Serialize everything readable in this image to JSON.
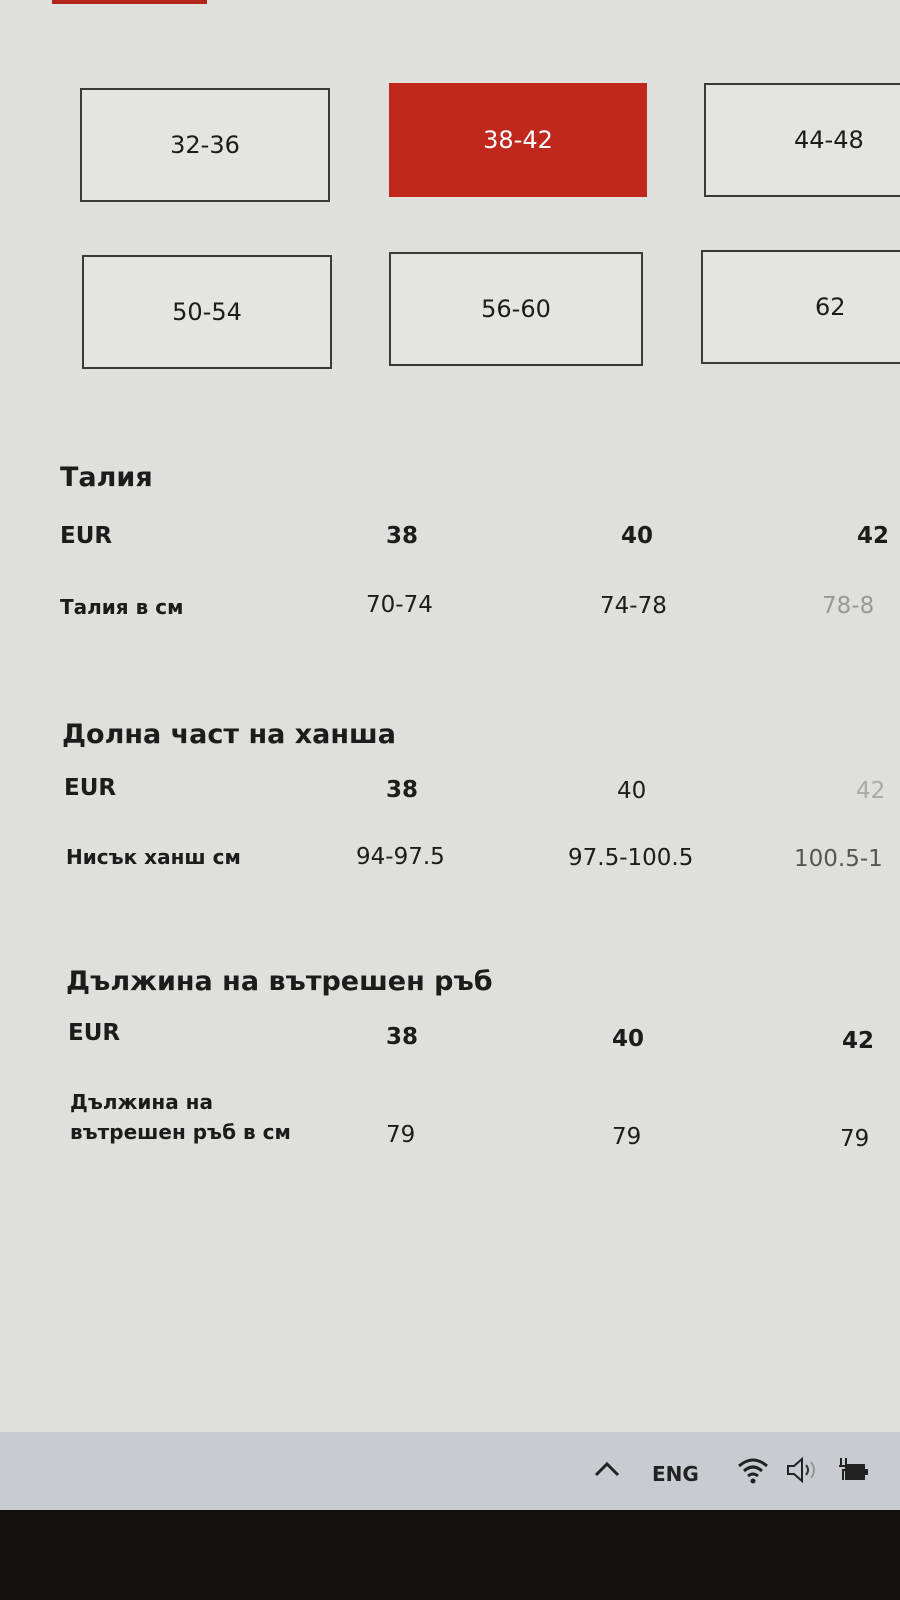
{
  "accent_color": "#c0281e",
  "size_buttons": [
    "32-36",
    "38-42",
    "44-48",
    "50-54",
    "56-60",
    "62"
  ],
  "selected_size": "38-42",
  "sections": [
    {
      "title": "Талия",
      "header_label": "EUR",
      "sizes": [
        "38",
        "40",
        "42"
      ],
      "row_label": "Талия в см",
      "values": [
        "70-74",
        "74-78",
        "78-8"
      ]
    },
    {
      "title": "Долна част на ханша",
      "header_label": "EUR",
      "sizes": [
        "38",
        "40",
        "42"
      ],
      "row_label": "Нисък ханш см",
      "values": [
        "94-97.5",
        "97.5-100.5",
        "100.5-1"
      ]
    },
    {
      "title": "Дължина на вътрешен ръб",
      "header_label": "EUR",
      "sizes": [
        "38",
        "40",
        "42"
      ],
      "row_label": "Дължина на вътрешен ръб в см",
      "values": [
        "79",
        "79",
        "79"
      ]
    }
  ],
  "taskbar": {
    "language": "ENG",
    "icons": [
      "chevron-up-icon",
      "wifi-icon",
      "speaker-icon",
      "battery-charging-icon"
    ]
  }
}
